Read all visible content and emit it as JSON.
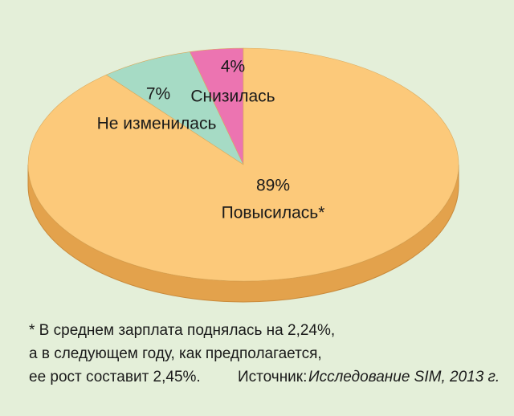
{
  "chart_data": {
    "type": "pie",
    "categories": [
      "Повысилась*",
      "Не изменилась",
      "Снизилась"
    ],
    "values": [
      89,
      7,
      4
    ],
    "value_labels": [
      "89%",
      "7%",
      "4%"
    ],
    "colors": [
      "#fcc97a",
      "#a6dbc5",
      "#ec74b1"
    ],
    "footnote": [
      "* В среднем зарплата поднялась на 2,24%,",
      "а в следующем году, как предполагается,",
      "ее рост составит 2,45%."
    ],
    "source_label": "Источник:",
    "source": "Исследование SIM, 2013 г."
  }
}
